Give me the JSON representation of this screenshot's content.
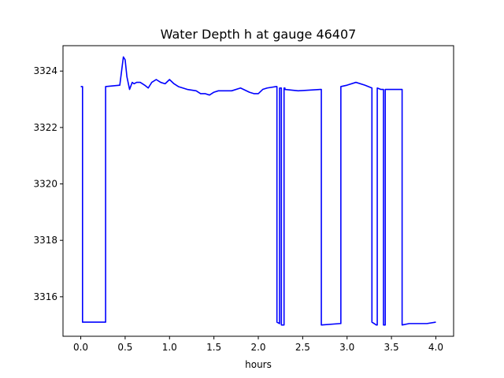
{
  "chart_data": {
    "type": "line",
    "title": "Water Depth h at gauge 46407",
    "xlabel": "hours",
    "ylabel": "",
    "xlim": [
      -0.2,
      4.2
    ],
    "ylim": [
      3314.6,
      3324.9
    ],
    "x_ticks": [
      0.0,
      0.5,
      1.0,
      1.5,
      2.0,
      2.5,
      3.0,
      3.5,
      4.0
    ],
    "x_tick_labels": [
      "0.0",
      "0.5",
      "1.0",
      "1.5",
      "2.0",
      "2.5",
      "3.0",
      "3.5",
      "4.0"
    ],
    "y_ticks": [
      3316,
      3318,
      3320,
      3322,
      3324
    ],
    "y_tick_labels": [
      "3316",
      "3318",
      "3320",
      "3322",
      "3324"
    ],
    "grid": false,
    "legend": "none",
    "series": [
      {
        "color": "#0000ff",
        "x": [
          0.0,
          0.02,
          0.02,
          0.28,
          0.28,
          0.44,
          0.46,
          0.48,
          0.5,
          0.52,
          0.55,
          0.58,
          0.6,
          0.63,
          0.67,
          0.72,
          0.76,
          0.8,
          0.85,
          0.9,
          0.95,
          1.0,
          1.05,
          1.1,
          1.15,
          1.2,
          1.3,
          1.35,
          1.4,
          1.45,
          1.5,
          1.55,
          1.6,
          1.65,
          1.7,
          1.8,
          1.9,
          1.95,
          2.0,
          2.05,
          2.1,
          2.2,
          2.21,
          2.21,
          2.24,
          2.24,
          2.26,
          2.26,
          2.29,
          2.29,
          2.3,
          2.3,
          2.45,
          2.7,
          2.71,
          2.71,
          2.92,
          2.93,
          2.93,
          3.0,
          3.1,
          3.2,
          3.28,
          3.28,
          3.33,
          3.34,
          3.34,
          3.38,
          3.41,
          3.41,
          3.43,
          3.43,
          3.5,
          3.62,
          3.62,
          3.7,
          3.8,
          3.9,
          4.0
        ],
        "y": [
          3323.45,
          3323.45,
          3315.1,
          3315.1,
          3323.45,
          3323.5,
          3324.0,
          3324.5,
          3324.4,
          3323.8,
          3323.35,
          3323.6,
          3323.55,
          3323.6,
          3323.6,
          3323.5,
          3323.4,
          3323.6,
          3323.7,
          3323.6,
          3323.55,
          3323.7,
          3323.55,
          3323.45,
          3323.4,
          3323.35,
          3323.3,
          3323.2,
          3323.2,
          3323.15,
          3323.25,
          3323.3,
          3323.3,
          3323.3,
          3323.3,
          3323.4,
          3323.25,
          3323.2,
          3323.2,
          3323.35,
          3323.4,
          3323.45,
          3323.45,
          3315.1,
          3315.05,
          3323.4,
          3323.4,
          3315.0,
          3315.0,
          3323.4,
          3323.4,
          3323.35,
          3323.3,
          3323.35,
          3323.35,
          3315.0,
          3315.05,
          3315.05,
          3323.45,
          3323.5,
          3323.6,
          3323.5,
          3323.4,
          3315.1,
          3315.0,
          3315.0,
          3323.4,
          3323.35,
          3323.35,
          3315.0,
          3315.0,
          3323.35,
          3323.35,
          3323.35,
          3315.0,
          3315.05,
          3315.05,
          3315.05,
          3315.1
        ]
      }
    ]
  }
}
